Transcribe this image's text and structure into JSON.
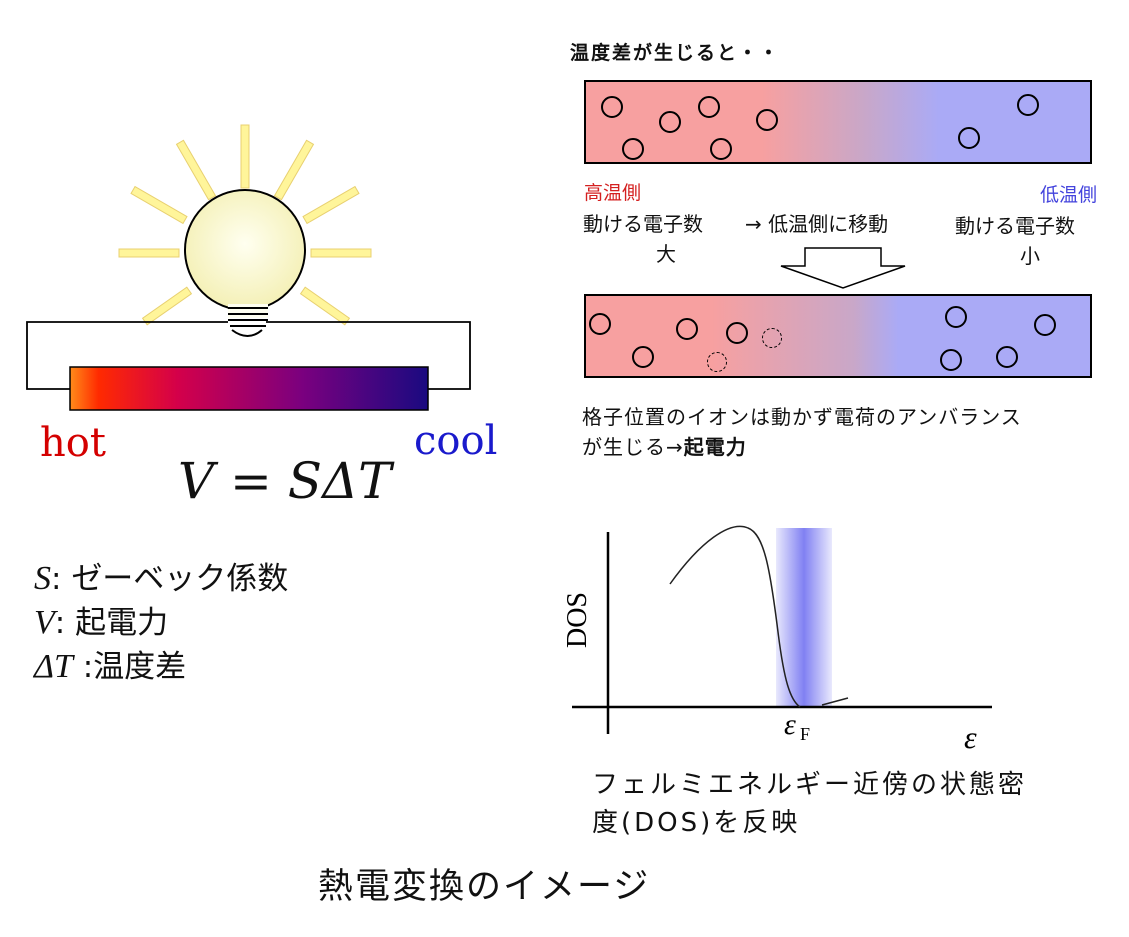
{
  "left": {
    "hot_label": "hot",
    "cool_label": "cool",
    "formula": {
      "v": "V",
      "eq": " = ",
      "s": "S",
      "dt": "ΔT"
    },
    "definitions": [
      {
        "symbol": "S",
        "sep": ": ",
        "text": "ゼーベック係数"
      },
      {
        "symbol": "V",
        "sep": ": ",
        "text": "起電力"
      },
      {
        "symbol": "ΔT",
        "sep": " :",
        "text": "温度差"
      }
    ],
    "colors": {
      "hot": "#d40000",
      "cool": "#1a1acc",
      "bar_left": "#ff8c1a",
      "bar_mid": "#d4004a",
      "bar_right": "#1a0a80"
    }
  },
  "right_top": {
    "title": "温度差が生じると・・",
    "hot_side_label": "高温側",
    "cold_side_label": "低温側",
    "hot_side_text_1": "動ける電子数",
    "hot_side_text_2": "大",
    "movement_text": "→ 低温側に移動",
    "cold_side_text_1": "動ける電子数",
    "cold_side_text_2": "小",
    "result_line_1": "格子位置のイオンは動かず電荷のアンバランス",
    "result_line_2_prefix": "が生じる→",
    "result_line_2_bold": "起電力"
  },
  "dos": {
    "y_label": "DOS",
    "x_label": "ε",
    "fermi_label": "ε",
    "fermi_sub": "F",
    "caption_line_1": "フェルミエネルギー近傍の状態密",
    "caption_line_2": "度(DOS)を反映",
    "highlight_color": "#6a6af0"
  },
  "main_caption": "熱電変換のイメージ"
}
